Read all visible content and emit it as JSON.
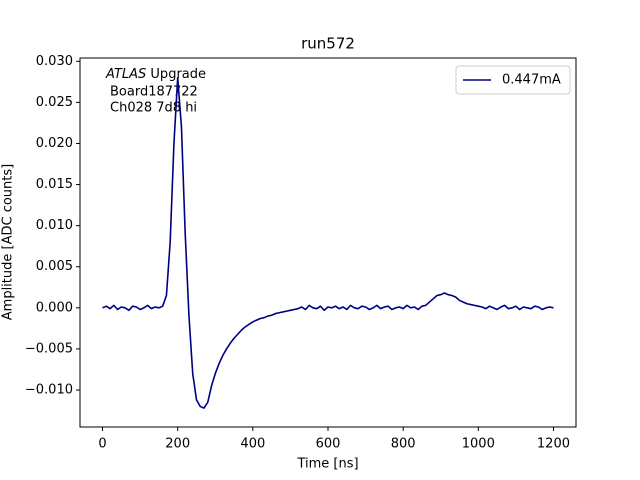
{
  "chart_data": {
    "type": "line",
    "title": "run572",
    "x_label": "Time [ns]",
    "y_label": "Amplitude [ADC counts]",
    "annotation": {
      "italic": "ATLAS",
      "text": "Upgrade",
      "lines": [
        "Board187722",
        "Ch028 7d8 hi"
      ]
    },
    "legend": "upper right",
    "grid": false,
    "xlim": [
      -60,
      1260
    ],
    "ylim": [
      -0.0145,
      0.0304
    ],
    "xticks": [
      0,
      200,
      400,
      600,
      800,
      1000,
      1200
    ],
    "yticks": [
      {
        "value": -0.01,
        "label": "−0.010"
      },
      {
        "value": -0.005,
        "label": "−0.005"
      },
      {
        "value": 0,
        "label": "0.000"
      },
      {
        "value": 0.005,
        "label": "0.005"
      },
      {
        "value": 0.01,
        "label": "0.010"
      },
      {
        "value": 0.015,
        "label": "0.015"
      },
      {
        "value": 0.02,
        "label": "0.020"
      },
      {
        "value": 0.025,
        "label": "0.025"
      },
      {
        "value": 0.03,
        "label": "0.030"
      }
    ],
    "x": [
      0,
      10,
      20,
      30,
      40,
      50,
      60,
      70,
      80,
      90,
      100,
      110,
      120,
      130,
      140,
      150,
      160,
      170,
      180,
      190,
      200,
      210,
      220,
      230,
      240,
      250,
      260,
      270,
      280,
      290,
      300,
      310,
      320,
      330,
      340,
      350,
      360,
      370,
      380,
      390,
      400,
      410,
      420,
      430,
      440,
      450,
      460,
      470,
      480,
      490,
      500,
      510,
      520,
      530,
      540,
      550,
      560,
      570,
      580,
      590,
      600,
      610,
      620,
      630,
      640,
      650,
      660,
      670,
      680,
      690,
      700,
      710,
      720,
      730,
      740,
      750,
      760,
      770,
      780,
      790,
      800,
      810,
      820,
      830,
      840,
      850,
      860,
      870,
      880,
      890,
      900,
      910,
      920,
      930,
      940,
      950,
      960,
      970,
      980,
      990,
      1000,
      1010,
      1020,
      1030,
      1040,
      1050,
      1060,
      1070,
      1080,
      1090,
      1100,
      1110,
      1120,
      1130,
      1140,
      1150,
      1160,
      1170,
      1180,
      1190,
      1200
    ],
    "series": [
      {
        "name": "0.447mA",
        "color": "#000080",
        "values": [
          0.0,
          0.0002,
          -0.0001,
          0.0003,
          -0.0002,
          0.0001,
          0.0,
          -0.0003,
          0.0002,
          0.0001,
          -0.0002,
          0.0,
          0.0003,
          -0.0001,
          0.0001,
          0.0,
          0.0002,
          0.0015,
          0.008,
          0.02,
          0.028,
          0.022,
          0.009,
          -0.001,
          -0.008,
          -0.0112,
          -0.012,
          -0.0122,
          -0.0115,
          -0.0095,
          -0.008,
          -0.0068,
          -0.0058,
          -0.005,
          -0.0043,
          -0.0037,
          -0.0032,
          -0.0027,
          -0.0023,
          -0.002,
          -0.0017,
          -0.0015,
          -0.0013,
          -0.0012,
          -0.001,
          -0.0009,
          -0.0007,
          -0.0006,
          -0.0005,
          -0.0004,
          -0.0003,
          -0.0002,
          -0.0001,
          0.0001,
          -0.0002,
          0.0003,
          0.0,
          -0.0001,
          0.0002,
          -0.0003,
          0.0001,
          0.0,
          0.0002,
          -0.0001,
          0.0001,
          -0.0002,
          0.0003,
          0.0,
          -0.0001,
          0.0002,
          0.0001,
          -0.0002,
          0.0,
          0.0003,
          -0.0001,
          0.0001,
          0.0002,
          -0.0002,
          0.0,
          0.0001,
          -0.0001,
          0.0003,
          0.0,
          0.0001,
          -0.0002,
          0.0002,
          0.0003,
          0.0007,
          0.0011,
          0.0015,
          0.0016,
          0.0018,
          0.0016,
          0.0015,
          0.0013,
          0.0009,
          0.0007,
          0.0005,
          0.0004,
          0.0003,
          0.0002,
          0.0001,
          -0.0001,
          0.0002,
          0.0,
          -0.0002,
          0.0001,
          0.0003,
          -0.0001,
          0.0,
          0.0002,
          -0.0002,
          0.0001,
          0.0,
          -0.0001,
          0.0002,
          0.0001,
          -0.0002,
          0.0,
          0.0001,
          0.0
        ]
      }
    ]
  }
}
